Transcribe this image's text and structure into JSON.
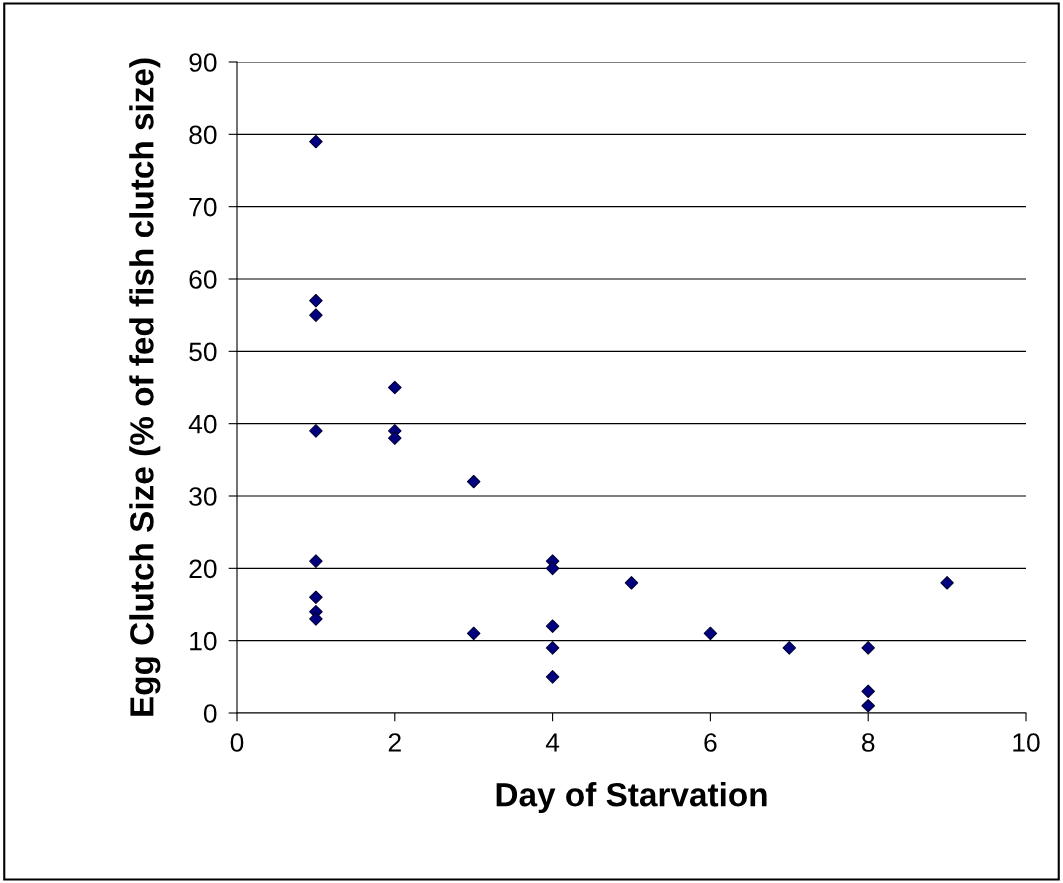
{
  "chart_data": {
    "type": "scatter",
    "xlabel": "Day of Starvation",
    "ylabel": "Egg Clutch Size (% of fed fish clutch size)",
    "x": [
      1,
      1,
      1,
      1,
      1,
      1,
      1,
      1,
      2,
      2,
      2,
      3,
      3,
      4,
      4,
      4,
      4,
      4,
      5,
      6,
      7,
      8,
      8,
      8,
      9
    ],
    "series": [
      {
        "color": "#000080",
        "values": [
          79,
          57,
          55,
          39,
          21,
          16,
          14,
          13,
          45,
          39,
          38,
          32,
          11,
          21,
          20,
          12,
          9,
          5,
          18,
          11,
          9,
          9,
          3,
          1,
          18
        ]
      }
    ],
    "xlim": [
      0,
      10
    ],
    "xticks": [
      0,
      2,
      4,
      6,
      8,
      10
    ],
    "ylim": [
      0,
      90
    ],
    "yticks": [
      0,
      10,
      20,
      30,
      40,
      50,
      60,
      70,
      80,
      90
    ],
    "grid": "y",
    "marker": "diamond",
    "legend": false
  }
}
